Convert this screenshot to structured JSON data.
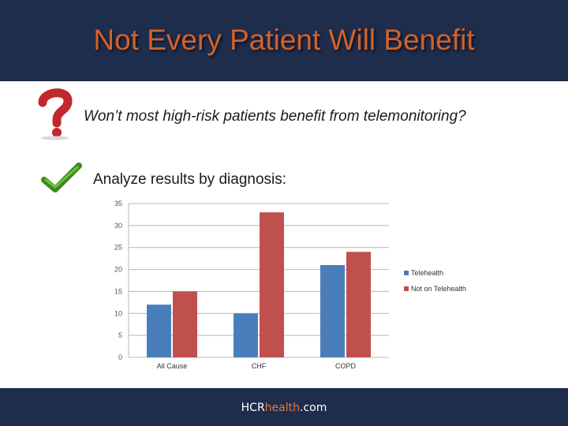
{
  "slide": {
    "title": "Not Every Patient Will Benefit",
    "question": "Won’t most high-risk patients benefit from telemonitoring?",
    "answer_lead": "Analyze results by diagnosis:"
  },
  "footer": {
    "brand_part1": "HCR",
    "brand_part2": "health",
    "brand_part3": ".com"
  },
  "colors": {
    "header_bg": "#1f2d4d",
    "title": "#d2622a",
    "telehealth": "#4a7ebb",
    "not_on_telehealth": "#c0504d"
  },
  "icons": {
    "question": "red-question-mark-icon",
    "check": "green-check-mark-icon"
  },
  "chart_data": {
    "type": "bar",
    "title": "",
    "xlabel": "",
    "ylabel": "",
    "categories": [
      "All Cause",
      "CHF",
      "COPD"
    ],
    "series": [
      {
        "name": "Telehealth",
        "values": [
          12,
          10,
          21
        ]
      },
      {
        "name": "Not on Telehealth",
        "values": [
          15,
          33,
          24
        ]
      }
    ],
    "ylim": [
      0,
      35
    ],
    "yticks": [
      "0",
      "5",
      "10",
      "15",
      "20",
      "25",
      "30",
      "35"
    ],
    "grid": true,
    "legend": "right"
  }
}
